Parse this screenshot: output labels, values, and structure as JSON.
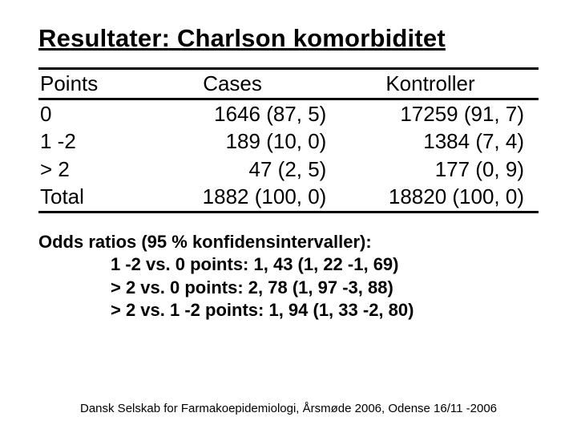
{
  "title": "Resultater: Charlson komorbiditet",
  "table": {
    "headers": {
      "c0": "Points",
      "c1": "Cases",
      "c2": "Kontroller"
    },
    "rows": [
      {
        "c0": "0",
        "c1": "1646 (87, 5)",
        "c2": "17259 (91, 7)"
      },
      {
        "c0": "1 -2",
        "c1": "189 (10, 0)",
        "c2": "1384 (7, 4)"
      },
      {
        "c0": "> 2",
        "c1": "47 (2, 5)",
        "c2": "177 (0, 9)"
      },
      {
        "c0": "Total",
        "c1": "1882 (100, 0)",
        "c2": "18820 (100, 0)"
      }
    ]
  },
  "odds": {
    "heading": "Odds ratios (95 % konfidensintervaller):",
    "lines": [
      "1 -2 vs. 0 points: 1, 43 (1, 22 -1, 69)",
      "> 2 vs. 0 points: 2, 78 (1, 97 -3, 88)",
      "> 2 vs. 1 -2 points: 1, 94 (1, 33 -2, 80)"
    ]
  },
  "footer": "Dansk Selskab for Farmakoepidemiologi, Årsmøde 2006, Odense 16/11 -2006"
}
